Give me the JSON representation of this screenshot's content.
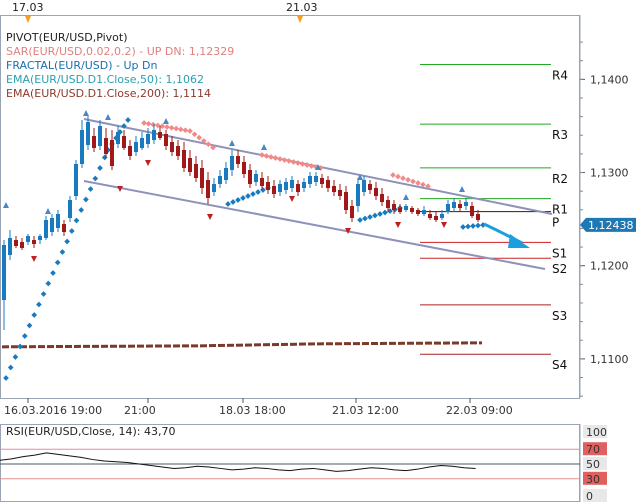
{
  "chart_data": {
    "type": "line",
    "title": "EUR/USD",
    "legend": [
      {
        "text": "PIVOT(EUR/USD,Pivot)",
        "color": "#222222"
      },
      {
        "text": "SAR(EUR/USD,0.02,0.2)  -  UP   DN: 1,12329",
        "color": "#e08080"
      },
      {
        "text": "FRACTAL(EUR/USD)  -  Up  Dn",
        "color": "#1a6fb0"
      },
      {
        "text": "EMA(EUR/USD.D1.Close,50): 1,1062",
        "color": "#2aa0b0"
      },
      {
        "text": "EMA(EUR/USD.D1.Close,200): 1,1114",
        "color": "#8b3a2a"
      }
    ],
    "top_date_markers": [
      "17.03",
      "21.03"
    ],
    "x_tick_labels": [
      "16.03.2016 19:00",
      "21:00",
      "18.03 18:00",
      "21.03 12:00",
      "22.03 09:00"
    ],
    "y_tick_labels": [
      "1,1400",
      "1,1300",
      "1,1200",
      "1,1100"
    ],
    "y_ticks": [
      1.14,
      1.13,
      1.12,
      1.11
    ],
    "ylim": [
      1.1058,
      1.1468
    ],
    "current_price": "1,12438",
    "current_price_value": 1.12438,
    "pivot_levels": [
      {
        "name": "R4",
        "value": 1.1416,
        "color": "#22aa22"
      },
      {
        "name": "R3",
        "value": 1.1352,
        "color": "#22aa22"
      },
      {
        "name": "R2",
        "value": 1.1305,
        "color": "#22aa22"
      },
      {
        "name": "R1",
        "value": 1.1272,
        "color": "#22aa22"
      },
      {
        "name": "P",
        "value": 1.1258,
        "color": "#222222"
      },
      {
        "name": "S1",
        "value": 1.1225,
        "color": "#cc2222"
      },
      {
        "name": "S2",
        "value": 1.1208,
        "color": "#cc2222"
      },
      {
        "name": "S3",
        "value": 1.1158,
        "color": "#aa2222"
      },
      {
        "name": "S4",
        "value": 1.1105,
        "color": "#aa2222"
      }
    ],
    "ema200_value": 1.1114,
    "rsi": {
      "label": "RSI(EUR/USD,Close, 14): 43,70",
      "value": 43.7,
      "levels": [
        "100",
        "70",
        "50",
        "30",
        "0"
      ],
      "level_values": [
        100,
        70,
        50,
        30,
        0
      ]
    }
  }
}
